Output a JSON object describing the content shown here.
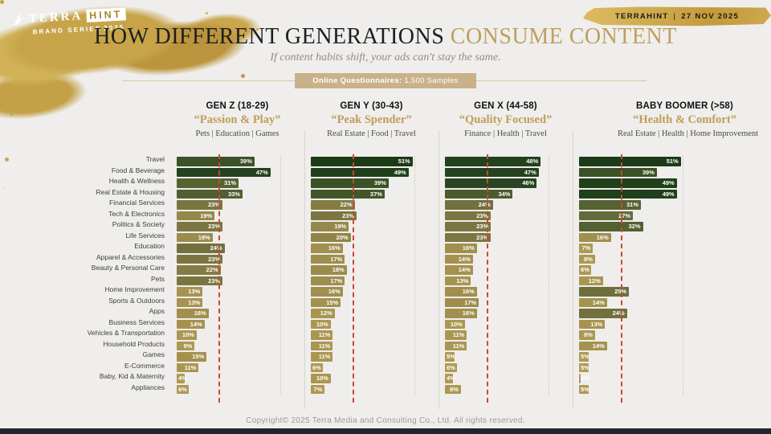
{
  "logo": {
    "brand_top": "TERRA",
    "brand_box": "HINT",
    "brand_sub": "BRAND SERIES",
    "brand_year": "2025"
  },
  "ribbon": {
    "brand": "TERRAHINT",
    "sep": "|",
    "date": "27 NOV 2025"
  },
  "header": {
    "title_dark": "HOW DIFFERENT GENERATIONS",
    "title_gold": "CONSUME CONTENT",
    "subtitle": "If content habits shift, your ads can't stay the same.",
    "badge_bold": "Online Questionnaires:",
    "badge_rest": "1,500 Samples"
  },
  "footer": {
    "copyright": "Copyright© 2025 Terra Media and Consulting Co., Ltd. All rights reserved."
  },
  "colors": {
    "background": "#efeeec",
    "accent_gold": "#bf9e5f",
    "badge_bg": "#c9b189",
    "avg_line_red": "#cd4833",
    "bar_dark_green": "#1d3a18",
    "bar_khaki": "#ae9a53",
    "bottom_bar": "#20242e"
  },
  "chart_data": {
    "type": "bar",
    "orientation": "horizontal",
    "title": "How Different Generations Consume Content",
    "unit": "%",
    "xlim": [
      0,
      55
    ],
    "avg_line": 21,
    "grid": "off",
    "categories": [
      "Travel",
      "Food & Beverage",
      "Health & Wellness",
      "Real Estate & Housing",
      "Financial Services",
      "Tech & Electronics",
      "Politics & Society",
      "Life Services",
      "Education",
      "Apparel & Accessories",
      "Beauty & Personal Care",
      "Pets",
      "Home Improvement",
      "Sports & Outdoors",
      "Apps",
      "Business Services",
      "Vehicles & Transportation",
      "Household Products",
      "Games",
      "E-Commerce",
      "Baby, Kid & Maternity",
      "Appliances"
    ],
    "series": [
      {
        "name": "GEN Z (18-29)",
        "tagline": "“Passion & Play”",
        "keywords": "Pets | Education | Games",
        "values": [
          39,
          47,
          31,
          33,
          23,
          19,
          23,
          18,
          24,
          23,
          22,
          23,
          13,
          13,
          16,
          14,
          10,
          9,
          15,
          11,
          4,
          6
        ]
      },
      {
        "name": "GEN Y (30-43)",
        "tagline": "“Peak Spender”",
        "keywords": "Real Estate | Food | Travel",
        "values": [
          51,
          49,
          39,
          37,
          22,
          23,
          19,
          20,
          16,
          17,
          18,
          17,
          16,
          15,
          12,
          10,
          11,
          11,
          11,
          6,
          10,
          7
        ]
      },
      {
        "name": "GEN X (44-58)",
        "tagline": "“Quality Focused”",
        "keywords": "Finance | Health | Travel",
        "values": [
          48,
          47,
          46,
          34,
          24,
          23,
          23,
          23,
          16,
          14,
          14,
          13,
          16,
          17,
          16,
          10,
          11,
          11,
          5,
          6,
          4,
          8
        ]
      },
      {
        "name": "BABY BOOMER (>58)",
        "tagline": "“Health & Comfort”",
        "keywords": "Real Estate | Health | Home Improvement",
        "values": [
          51,
          39,
          49,
          49,
          31,
          27,
          32,
          16,
          7,
          8,
          6,
          12,
          25,
          14,
          24,
          13,
          8,
          14,
          5,
          5,
          1,
          5
        ]
      }
    ],
    "color_stops": [
      [
        5,
        "#ae9a53"
      ],
      [
        10,
        "#ab9751"
      ],
      [
        14,
        "#a5924f"
      ],
      [
        18,
        "#9c8c4c"
      ],
      [
        22,
        "#857c44"
      ],
      [
        24,
        "#71703e"
      ],
      [
        27,
        "#646a39"
      ],
      [
        31,
        "#576233"
      ],
      [
        34,
        "#4c5c2e"
      ],
      [
        37,
        "#425729"
      ],
      [
        39,
        "#3b5126"
      ],
      [
        46,
        "#284420"
      ],
      [
        49,
        "#203f1b"
      ],
      [
        51,
        "#1d3a18"
      ]
    ]
  }
}
